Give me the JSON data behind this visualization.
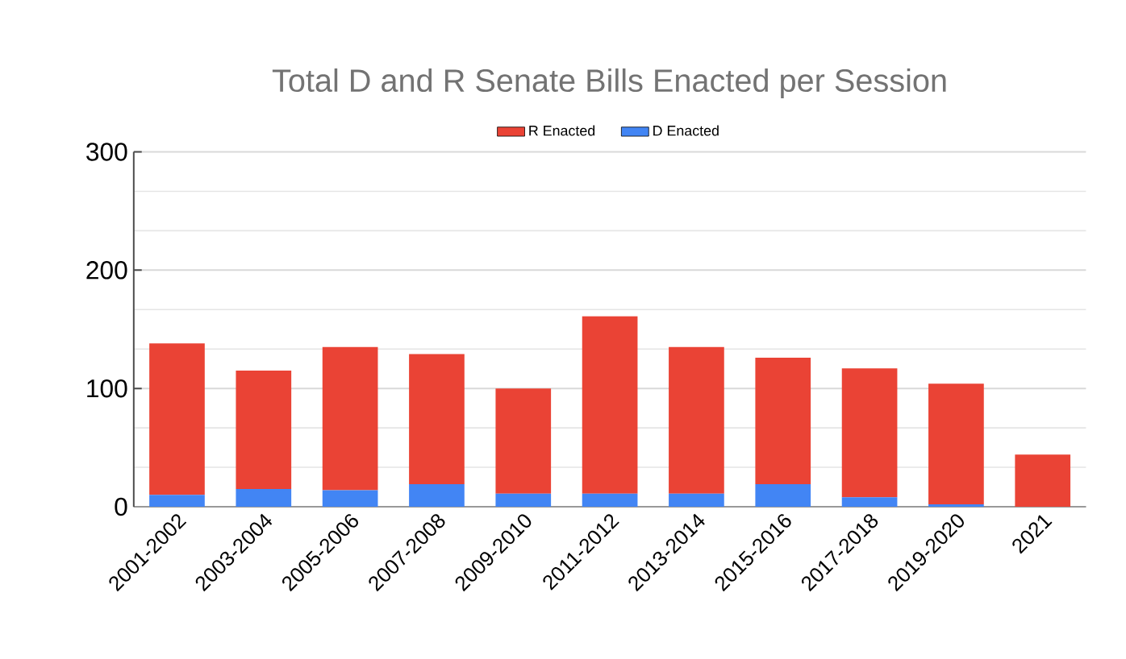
{
  "chart_data": {
    "type": "bar",
    "stacked": true,
    "title": "Total D and R Senate Bills Enacted per Session",
    "categories": [
      "2001-2002",
      "2003-2004",
      "2005-2006",
      "2007-2008",
      "2009-2010",
      "2011-2012",
      "2013-2014",
      "2015-2016",
      "2017-2018",
      "2019-2020",
      "2021"
    ],
    "series": [
      {
        "name": "D Enacted",
        "color": "#4285f4",
        "values": [
          10,
          15,
          14,
          19,
          11,
          11,
          11,
          19,
          8,
          2,
          0
        ]
      },
      {
        "name": "R Enacted",
        "color": "#ea4335",
        "values": [
          128,
          100,
          121,
          110,
          89,
          150,
          124,
          107,
          109,
          102,
          44
        ]
      }
    ],
    "ylim": [
      0,
      300
    ],
    "yticks": [
      0,
      100,
      200,
      300
    ],
    "grid": true,
    "legend": "top"
  }
}
